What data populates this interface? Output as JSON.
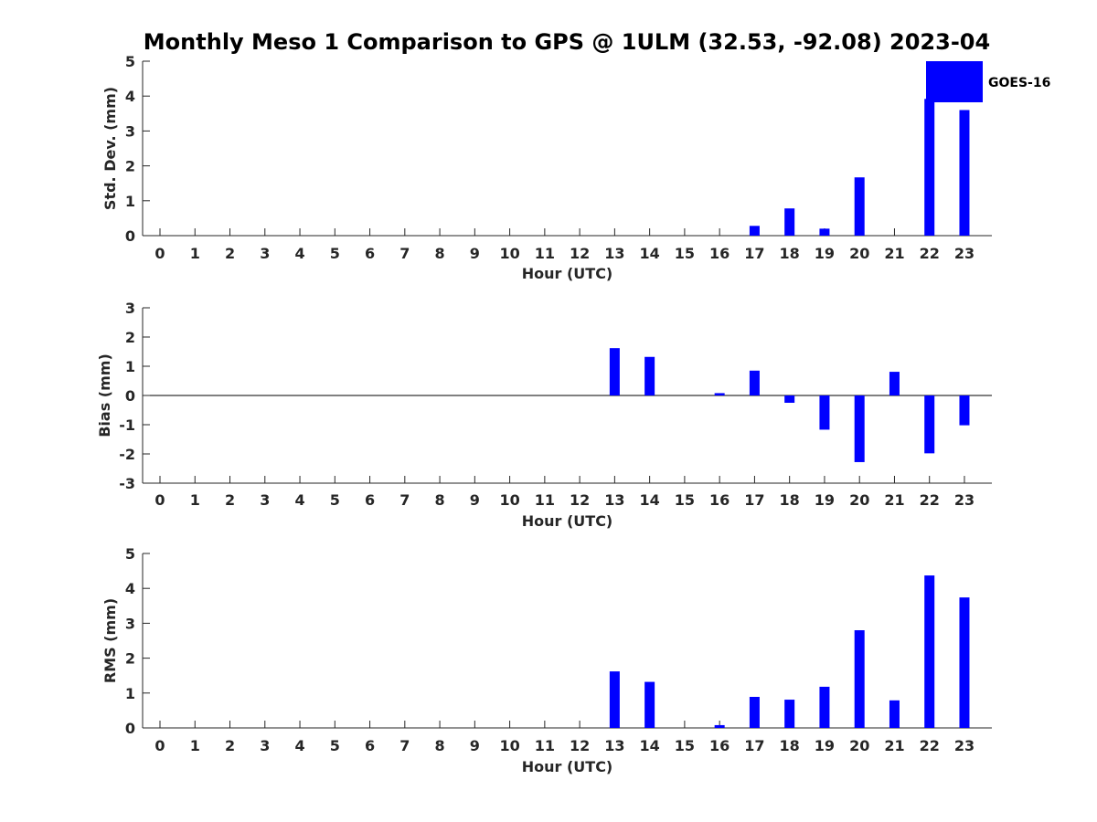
{
  "title": "Monthly Meso 1 Comparison to GPS @ 1ULM (32.53, -92.08) 2023-04",
  "legend": {
    "label": "GOES-16",
    "color": "#0000ff"
  },
  "chart_data": [
    {
      "type": "bar",
      "xlabel": "Hour (UTC)",
      "ylabel": "Std. Dev. (mm)",
      "ylim": [
        0,
        5
      ],
      "yticks": [
        0,
        1,
        2,
        3,
        4,
        5
      ],
      "categories": [
        0,
        1,
        2,
        3,
        4,
        5,
        6,
        7,
        8,
        9,
        10,
        11,
        12,
        13,
        14,
        15,
        16,
        17,
        18,
        19,
        20,
        21,
        22,
        23
      ],
      "series": [
        {
          "name": "GOES-16",
          "color": "#0000ff",
          "values": [
            null,
            null,
            null,
            null,
            null,
            null,
            null,
            null,
            null,
            null,
            null,
            null,
            null,
            0,
            0,
            null,
            0,
            0.28,
            0.78,
            0.2,
            1.67,
            0,
            3.92,
            3.6
          ]
        }
      ],
      "legend_position": "top-right"
    },
    {
      "type": "bar",
      "xlabel": "Hour (UTC)",
      "ylabel": "Bias (mm)",
      "ylim": [
        -3,
        3
      ],
      "yticks": [
        -3,
        -2,
        -1,
        0,
        1,
        2,
        3
      ],
      "zero_line": true,
      "categories": [
        0,
        1,
        2,
        3,
        4,
        5,
        6,
        7,
        8,
        9,
        10,
        11,
        12,
        13,
        14,
        15,
        16,
        17,
        18,
        19,
        20,
        21,
        22,
        23
      ],
      "series": [
        {
          "name": "GOES-16",
          "color": "#0000ff",
          "values": [
            null,
            null,
            null,
            null,
            null,
            null,
            null,
            null,
            null,
            null,
            null,
            null,
            null,
            1.62,
            1.32,
            null,
            0.08,
            0.85,
            -0.25,
            -1.17,
            -2.28,
            0.81,
            -1.98,
            -1.02
          ]
        }
      ]
    },
    {
      "type": "bar",
      "xlabel": "Hour (UTC)",
      "ylabel": "RMS (mm)",
      "ylim": [
        0,
        5
      ],
      "yticks": [
        0,
        1,
        2,
        3,
        4,
        5
      ],
      "categories": [
        0,
        1,
        2,
        3,
        4,
        5,
        6,
        7,
        8,
        9,
        10,
        11,
        12,
        13,
        14,
        15,
        16,
        17,
        18,
        19,
        20,
        21,
        22,
        23
      ],
      "series": [
        {
          "name": "GOES-16",
          "color": "#0000ff",
          "values": [
            null,
            null,
            null,
            null,
            null,
            null,
            null,
            null,
            null,
            null,
            null,
            null,
            null,
            1.62,
            1.32,
            null,
            0.08,
            0.89,
            0.81,
            1.18,
            2.8,
            0.79,
            4.37,
            3.74
          ]
        }
      ]
    }
  ]
}
